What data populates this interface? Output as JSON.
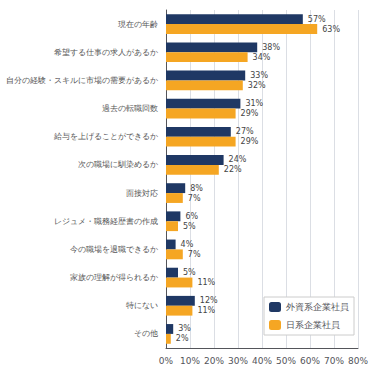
{
  "chart_data": {
    "type": "bar",
    "orientation": "horizontal",
    "categories": [
      "現在の年齢",
      "希望する仕事の求人があるか",
      "自分の経験・スキルに市場の需要があるか",
      "過去の転職回数",
      "給与を上げることができるか",
      "次の職場に馴染めるか",
      "面接対応",
      "レジュメ・職務経歴書の作成",
      "今の職場を退職できるか",
      "家族の理解が得られるか",
      "特にない",
      "その他"
    ],
    "series": [
      {
        "name": "外資系企業社員",
        "color": "#1f3864",
        "values": [
          57,
          38,
          33,
          31,
          27,
          24,
          8,
          6,
          4,
          5,
          12,
          3
        ],
        "value_labels": [
          "57%",
          "38%",
          "33%",
          "31%",
          "27%",
          "24%",
          "8%",
          "6%",
          "4%",
          "5%",
          "12%",
          "3%"
        ]
      },
      {
        "name": "日系企業社員",
        "color": "#f5a623",
        "values": [
          63,
          34,
          32,
          29,
          29,
          22,
          7,
          5,
          7,
          11,
          11,
          2
        ],
        "value_labels": [
          "63%",
          "34%",
          "32%",
          "29%",
          "29%",
          "22%",
          "7%",
          "5%",
          "7%",
          "11%",
          "11%",
          "2%"
        ]
      }
    ],
    "xlim": [
      0,
      80
    ],
    "xticks": [
      {
        "value": 0,
        "label": "0%"
      },
      {
        "value": 10,
        "label": "10%"
      },
      {
        "value": 20,
        "label": "20%"
      },
      {
        "value": 30,
        "label": "30%"
      },
      {
        "value": 40,
        "label": "40%"
      },
      {
        "value": 50,
        "label": "50%"
      },
      {
        "value": 60,
        "label": "60%"
      },
      {
        "value": 70,
        "label": "70%"
      },
      {
        "value": 80,
        "label": "80%"
      }
    ],
    "grid": true,
    "legend": "lower right",
    "data_labels": true
  }
}
